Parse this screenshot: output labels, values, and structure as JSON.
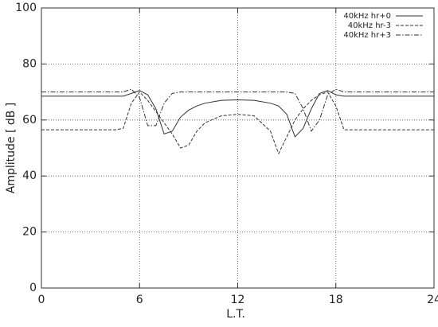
{
  "chart_data": {
    "type": "line",
    "x_label": "L.T.",
    "y_label": "Amplitude [ dB ]",
    "x": [
      0,
      1,
      2,
      3,
      4,
      4.5,
      5,
      5.5,
      6,
      6.5,
      7,
      7.5,
      8,
      8.5,
      9,
      9.5,
      10,
      11,
      12,
      13,
      14,
      14.5,
      15,
      15.5,
      16,
      16.5,
      17,
      17.5,
      18,
      18.5,
      19,
      20,
      21,
      22,
      23,
      24
    ],
    "series": [
      {
        "name": "40kHz hr+0",
        "color": "#333333",
        "dash": "solid",
        "values": [
          68.5,
          68.5,
          68.5,
          68.5,
          68.5,
          68.5,
          68.5,
          69.5,
          70.5,
          69,
          64,
          55,
          56,
          61,
          63.5,
          65,
          66,
          67,
          67.2,
          67,
          66,
          65,
          62,
          54,
          57,
          64,
          69.5,
          70.5,
          69,
          68.5,
          68.5,
          68.5,
          68.5,
          68.5,
          68.5,
          68.5
        ]
      },
      {
        "name": "40kHz hr-3",
        "color": "#333333",
        "dash": "dashed",
        "values": [
          56.5,
          56.5,
          56.5,
          56.5,
          56.5,
          56.5,
          57,
          66,
          70,
          67,
          63,
          59,
          55,
          50,
          51,
          56,
          59,
          61.5,
          62,
          61.5,
          56,
          48,
          54,
          60,
          64,
          67,
          69,
          70,
          65,
          56.5,
          56.5,
          56.5,
          56.5,
          56.5,
          56.5,
          56.5
        ]
      },
      {
        "name": "40kHz hr+3",
        "color": "#333333",
        "dash": "dashdot",
        "values": [
          70,
          70,
          70,
          70,
          70,
          70,
          70,
          71,
          68,
          58,
          58,
          66,
          69.5,
          70,
          70,
          70,
          70,
          70,
          70,
          70,
          70,
          70,
          70,
          69.5,
          64,
          56,
          60,
          69,
          71,
          70,
          70,
          70,
          70,
          70,
          70,
          70
        ]
      }
    ],
    "xlim": [
      0,
      24
    ],
    "xticks": [
      0,
      6,
      12,
      18,
      24
    ],
    "ylim": [
      0,
      100
    ],
    "yticks": [
      0,
      20,
      40,
      60,
      80,
      100
    ],
    "grid": true,
    "legend": "upper right"
  }
}
